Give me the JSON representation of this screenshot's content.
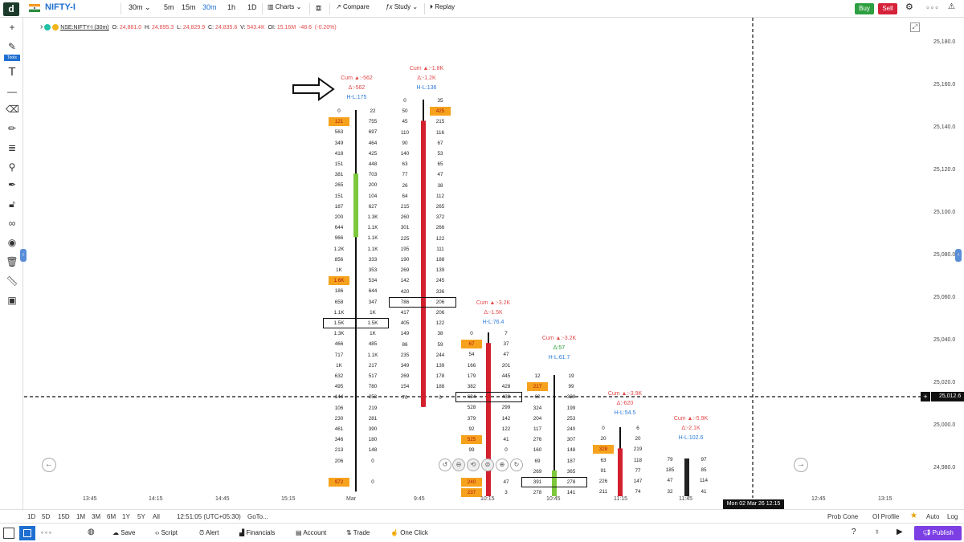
{
  "topbar": {
    "logo": "d",
    "symbol": "NIFTY-I",
    "interval": "30m",
    "intervals": [
      "5m",
      "15m",
      "30m",
      "1h",
      "1D"
    ],
    "charts_label": "Charts",
    "compare_label": "Compare",
    "study_label": "Study",
    "replay_label": "Replay",
    "buy_label": "Buy",
    "sell_label": "Sell",
    "more": "∘∘∘",
    "buy_color": "#2e9f40",
    "sell_color": "#d6213a"
  },
  "legend": {
    "name": "NSE:NIFTY-I (30m)",
    "o_label": "O:",
    "o": "24,881.0",
    "h_label": "H:",
    "h": "24,895.3",
    "l_label": "L:",
    "l": "24,829.9",
    "c_label": "C:",
    "c": "24,835.6",
    "v_label": "V:",
    "v": "543.4K",
    "oi_label": "OI:",
    "oi": "15.16M",
    "chg": "-48.6",
    "chg_pct": "(-0.20%)"
  },
  "left_toolbar": {
    "tools_label": "Tools",
    "icons": [
      "crosshair-icon",
      "brush-icon",
      "text-icon",
      "line-icon",
      "eraser-icon",
      "pencil-icon",
      "fib-icon",
      "measure-icon",
      "pen-icon",
      "lock-icon",
      "link-icon",
      "eye-icon",
      "trash-icon",
      "ruler-icon",
      "snapshot-icon"
    ]
  },
  "price_axis": {
    "labels": [
      "25,180.0",
      "25,160.0",
      "25,140.0",
      "25,120.0",
      "25,100.0",
      "25,080.0",
      "25,060.0",
      "25,040.0",
      "25,020.0",
      "25,000.0",
      "24,980.0"
    ],
    "current": "25,012.6"
  },
  "time_axis": {
    "labels": [
      "13:45",
      "14:15",
      "14:45",
      "15:15",
      "Mar",
      "9:45",
      "10:15",
      "10:45",
      "11:15",
      "11:45",
      "12:45",
      "13:15"
    ],
    "cursor_label": "Mon 02 Mar 26 12:15"
  },
  "footprint": {
    "columns": [
      {
        "annotation": {
          "cum": "Cum ▲:-562",
          "delta": "Δ:-562",
          "hl": "H-L:175"
        },
        "bid": [
          "0",
          "121",
          "563",
          "349",
          "418",
          "151",
          "381",
          "265",
          "151",
          "187",
          "200",
          "644",
          "966",
          "1.2K",
          "856",
          "1K",
          "1.6K",
          "186",
          "658",
          "1.1K",
          "1.5K",
          "1.3K",
          "466",
          "717",
          "1K",
          "632",
          "495",
          "144",
          "106",
          "230",
          "461",
          "346",
          "213",
          "206",
          "",
          "972"
        ],
        "ask": [
          "22",
          "755",
          "697",
          "464",
          "425",
          "448",
          "703",
          "200",
          "104",
          "627",
          "1.3K",
          "1.1K",
          "1.1K",
          "1.1K",
          "333",
          "353",
          "534",
          "644",
          "347",
          "1K",
          "1.5K",
          "1K",
          "485",
          "1.1K",
          "217",
          "517",
          "780",
          "253",
          "219",
          "281",
          "390",
          "180",
          "148",
          "0",
          "",
          "0"
        ],
        "bid_hi": [
          1,
          16,
          35
        ],
        "ask_hi": [],
        "box": 20,
        "candle_color": "#7dc83c"
      },
      {
        "annotation": {
          "cum": "Cum ▲:-1.8K",
          "delta": "Δ:-1.2K",
          "hl": "H-L:136"
        },
        "bid": [
          "0",
          "50",
          "45",
          "110",
          "90",
          "140",
          "63",
          "77",
          "26",
          "64",
          "215",
          "260",
          "301",
          "225",
          "195",
          "190",
          "269",
          "142",
          "420",
          "786",
          "417",
          "405",
          "149",
          "86",
          "235",
          "349",
          "269",
          "154",
          "70"
        ],
        "ask": [
          "35",
          "425",
          "215",
          "116",
          "67",
          "53",
          "65",
          "47",
          "38",
          "112",
          "265",
          "372",
          "266",
          "122",
          "111",
          "188",
          "139",
          "245",
          "336",
          "206",
          "206",
          "122",
          "38",
          "59",
          "244",
          "139",
          "178",
          "188",
          "0"
        ],
        "bid_hi": [],
        "ask_hi": [
          1
        ],
        "box": 19,
        "candle_color": "#d3202e"
      },
      {
        "annotation": {
          "cum": "Cum ▲:-3.2K",
          "delta": "Δ:-1.5K",
          "hl": "H-L:76.4"
        },
        "bid": [
          "0",
          "67",
          "54",
          "166",
          "179",
          "382",
          "634",
          "528",
          "379",
          "92",
          "525",
          "99",
          "",
          "",
          "240",
          "237"
        ],
        "ask": [
          "7",
          "37",
          "47",
          "201",
          "445",
          "428",
          "439",
          "299",
          "142",
          "122",
          "41",
          "0",
          "",
          "",
          "47",
          "3"
        ],
        "bid_hi": [
          1,
          10,
          14,
          15
        ],
        "ask_hi": [],
        "box": 6,
        "candle_color": "#d3202e"
      },
      {
        "annotation": {
          "cum": "Cum ▲:-3.2K",
          "delta": "Δ:57",
          "hl": "H-L:61.7"
        },
        "bid": [
          "12",
          "217",
          "60",
          "324",
          "204",
          "117",
          "276",
          "160",
          "69",
          "269",
          "391",
          "278"
        ],
        "ask": [
          "19",
          "99",
          "328",
          "199",
          "253",
          "240",
          "307",
          "148",
          "187",
          "365",
          "278",
          "141"
        ],
        "bid_hi": [
          1
        ],
        "ask_hi": [],
        "box": 10,
        "candle_color": "#7dc83c"
      },
      {
        "annotation": {
          "cum": "Cum ▲:-3.9K",
          "delta": "Δ:-620",
          "hl": "H-L:54.5"
        },
        "bid": [
          "0",
          "20",
          "328",
          "63",
          "91",
          "226",
          "211"
        ],
        "ask": [
          "6",
          "20",
          "219",
          "118",
          "77",
          "147",
          "74"
        ],
        "bid_hi": [
          2
        ],
        "ask_hi": [],
        "box": -1,
        "candle_color": "#d3202e"
      },
      {
        "annotation": {
          "cum": "Cum ▲:-5.9K",
          "delta": "Δ:-2.1K",
          "hl": "H-L:102.6"
        },
        "bid": [
          "79",
          "185",
          "47",
          "32"
        ],
        "ask": [
          "97",
          "85",
          "114",
          "41"
        ],
        "bid_hi": [],
        "ask_hi": [],
        "box": -1,
        "candle_color": "#222222"
      }
    ]
  },
  "bottom_bar": {
    "ranges": [
      "1D",
      "5D",
      "15D",
      "1M",
      "3M",
      "6M",
      "1Y",
      "5Y",
      "All"
    ],
    "time": "12:51:05 (UTC+05:30)",
    "goto": "GoTo...",
    "prob_cone": "Prob Cone",
    "oi_profile": "OI Profile",
    "auto": "Auto",
    "log": "Log"
  },
  "footer": {
    "save": "Save",
    "script": "Script",
    "alert": "Alert",
    "financials": "Financials",
    "account": "Account",
    "trade": "Trade",
    "one_click": "One Click",
    "publish": "Publish",
    "more": "∘∘∘"
  }
}
